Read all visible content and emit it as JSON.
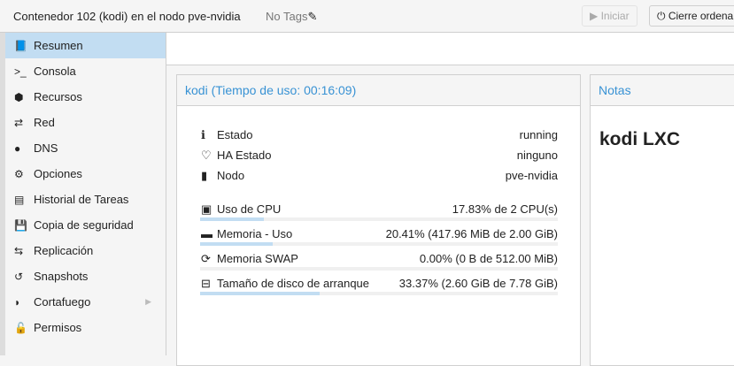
{
  "header": {
    "title": "Contenedor 102 (kodi) en el nodo pve-nvidia",
    "tags": "No Tags",
    "start_label": "Iniciar",
    "shutdown_label": "Cierre ordena"
  },
  "sidebar": {
    "items": [
      {
        "label": "Resumen",
        "icon": "book-icon",
        "glyph": "📘"
      },
      {
        "label": "Consola",
        "icon": "terminal-icon",
        "glyph": ">_"
      },
      {
        "label": "Recursos",
        "icon": "cube-icon",
        "glyph": "⬢"
      },
      {
        "label": "Red",
        "icon": "exchange-icon",
        "glyph": "⇄"
      },
      {
        "label": "DNS",
        "icon": "globe-icon",
        "glyph": "●"
      },
      {
        "label": "Opciones",
        "icon": "gear-icon",
        "glyph": "⚙"
      },
      {
        "label": "Historial de Tareas",
        "icon": "list-icon",
        "glyph": "▤"
      },
      {
        "label": "Copia de seguridad",
        "icon": "floppy-icon",
        "glyph": "💾"
      },
      {
        "label": "Replicación",
        "icon": "retweet-icon",
        "glyph": "⇆"
      },
      {
        "label": "Snapshots",
        "icon": "history-icon",
        "glyph": "↺"
      },
      {
        "label": "Cortafuego",
        "icon": "shield-icon",
        "glyph": "◗"
      },
      {
        "label": "Permisos",
        "icon": "unlock-icon",
        "glyph": "🔓"
      }
    ]
  },
  "status": {
    "title": "kodi (Tiempo de uso: 00:16:09)",
    "estado_label": "Estado",
    "estado": "running",
    "ha_label": "HA Estado",
    "ha": "ninguno",
    "nodo_label": "Nodo",
    "nodo": "pve-nvidia",
    "cpu_label": "Uso de CPU",
    "cpu": "17.83% de 2 CPU(s)",
    "cpu_pct": 17.83,
    "mem_label": "Memoria - Uso",
    "mem": "20.41% (417.96 MiB de 2.00 GiB)",
    "mem_pct": 20.41,
    "swap_label": "Memoria SWAP",
    "swap": "0.00% (0 B de 512.00 MiB)",
    "swap_pct": 0,
    "disk_label": "Tamaño de disco de arranque",
    "disk": "33.37% (2.60 GiB de 7.78 GiB)",
    "disk_pct": 33.37
  },
  "notes": {
    "title": "Notas",
    "content": "kodi LXC"
  }
}
